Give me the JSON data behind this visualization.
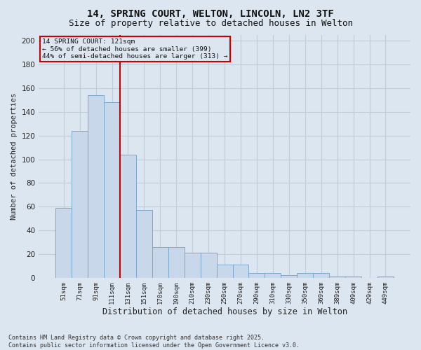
{
  "title_line1": "14, SPRING COURT, WELTON, LINCOLN, LN2 3TF",
  "title_line2": "Size of property relative to detached houses in Welton",
  "xlabel": "Distribution of detached houses by size in Welton",
  "ylabel": "Number of detached properties",
  "categories": [
    "51sqm",
    "71sqm",
    "91sqm",
    "111sqm",
    "131sqm",
    "151sqm",
    "170sqm",
    "190sqm",
    "210sqm",
    "230sqm",
    "250sqm",
    "270sqm",
    "290sqm",
    "310sqm",
    "330sqm",
    "350sqm",
    "369sqm",
    "389sqm",
    "409sqm",
    "429sqm",
    "449sqm"
  ],
  "values": [
    59,
    124,
    154,
    148,
    104,
    57,
    26,
    26,
    21,
    21,
    11,
    11,
    4,
    4,
    2,
    4,
    4,
    1,
    1,
    0,
    1
  ],
  "bar_color": "#c8d8ea",
  "bar_edge_color": "#7aa8cc",
  "background_color": "#dce6f0",
  "grid_color": "#c0ccd8",
  "vline_x": 3.5,
  "vline_color": "#cc0000",
  "annotation_text": "14 SPRING COURT: 121sqm\n← 56% of detached houses are smaller (399)\n44% of semi-detached houses are larger (313) →",
  "annotation_box_facecolor": "#dce6f0",
  "annotation_box_edgecolor": "#cc0000",
  "ylim": [
    0,
    205
  ],
  "yticks": [
    0,
    20,
    40,
    60,
    80,
    100,
    120,
    140,
    160,
    180,
    200
  ],
  "footer_line1": "Contains HM Land Registry data © Crown copyright and database right 2025.",
  "footer_line2": "Contains public sector information licensed under the Open Government Licence v3.0.",
  "title_fontsize": 10,
  "subtitle_fontsize": 9
}
